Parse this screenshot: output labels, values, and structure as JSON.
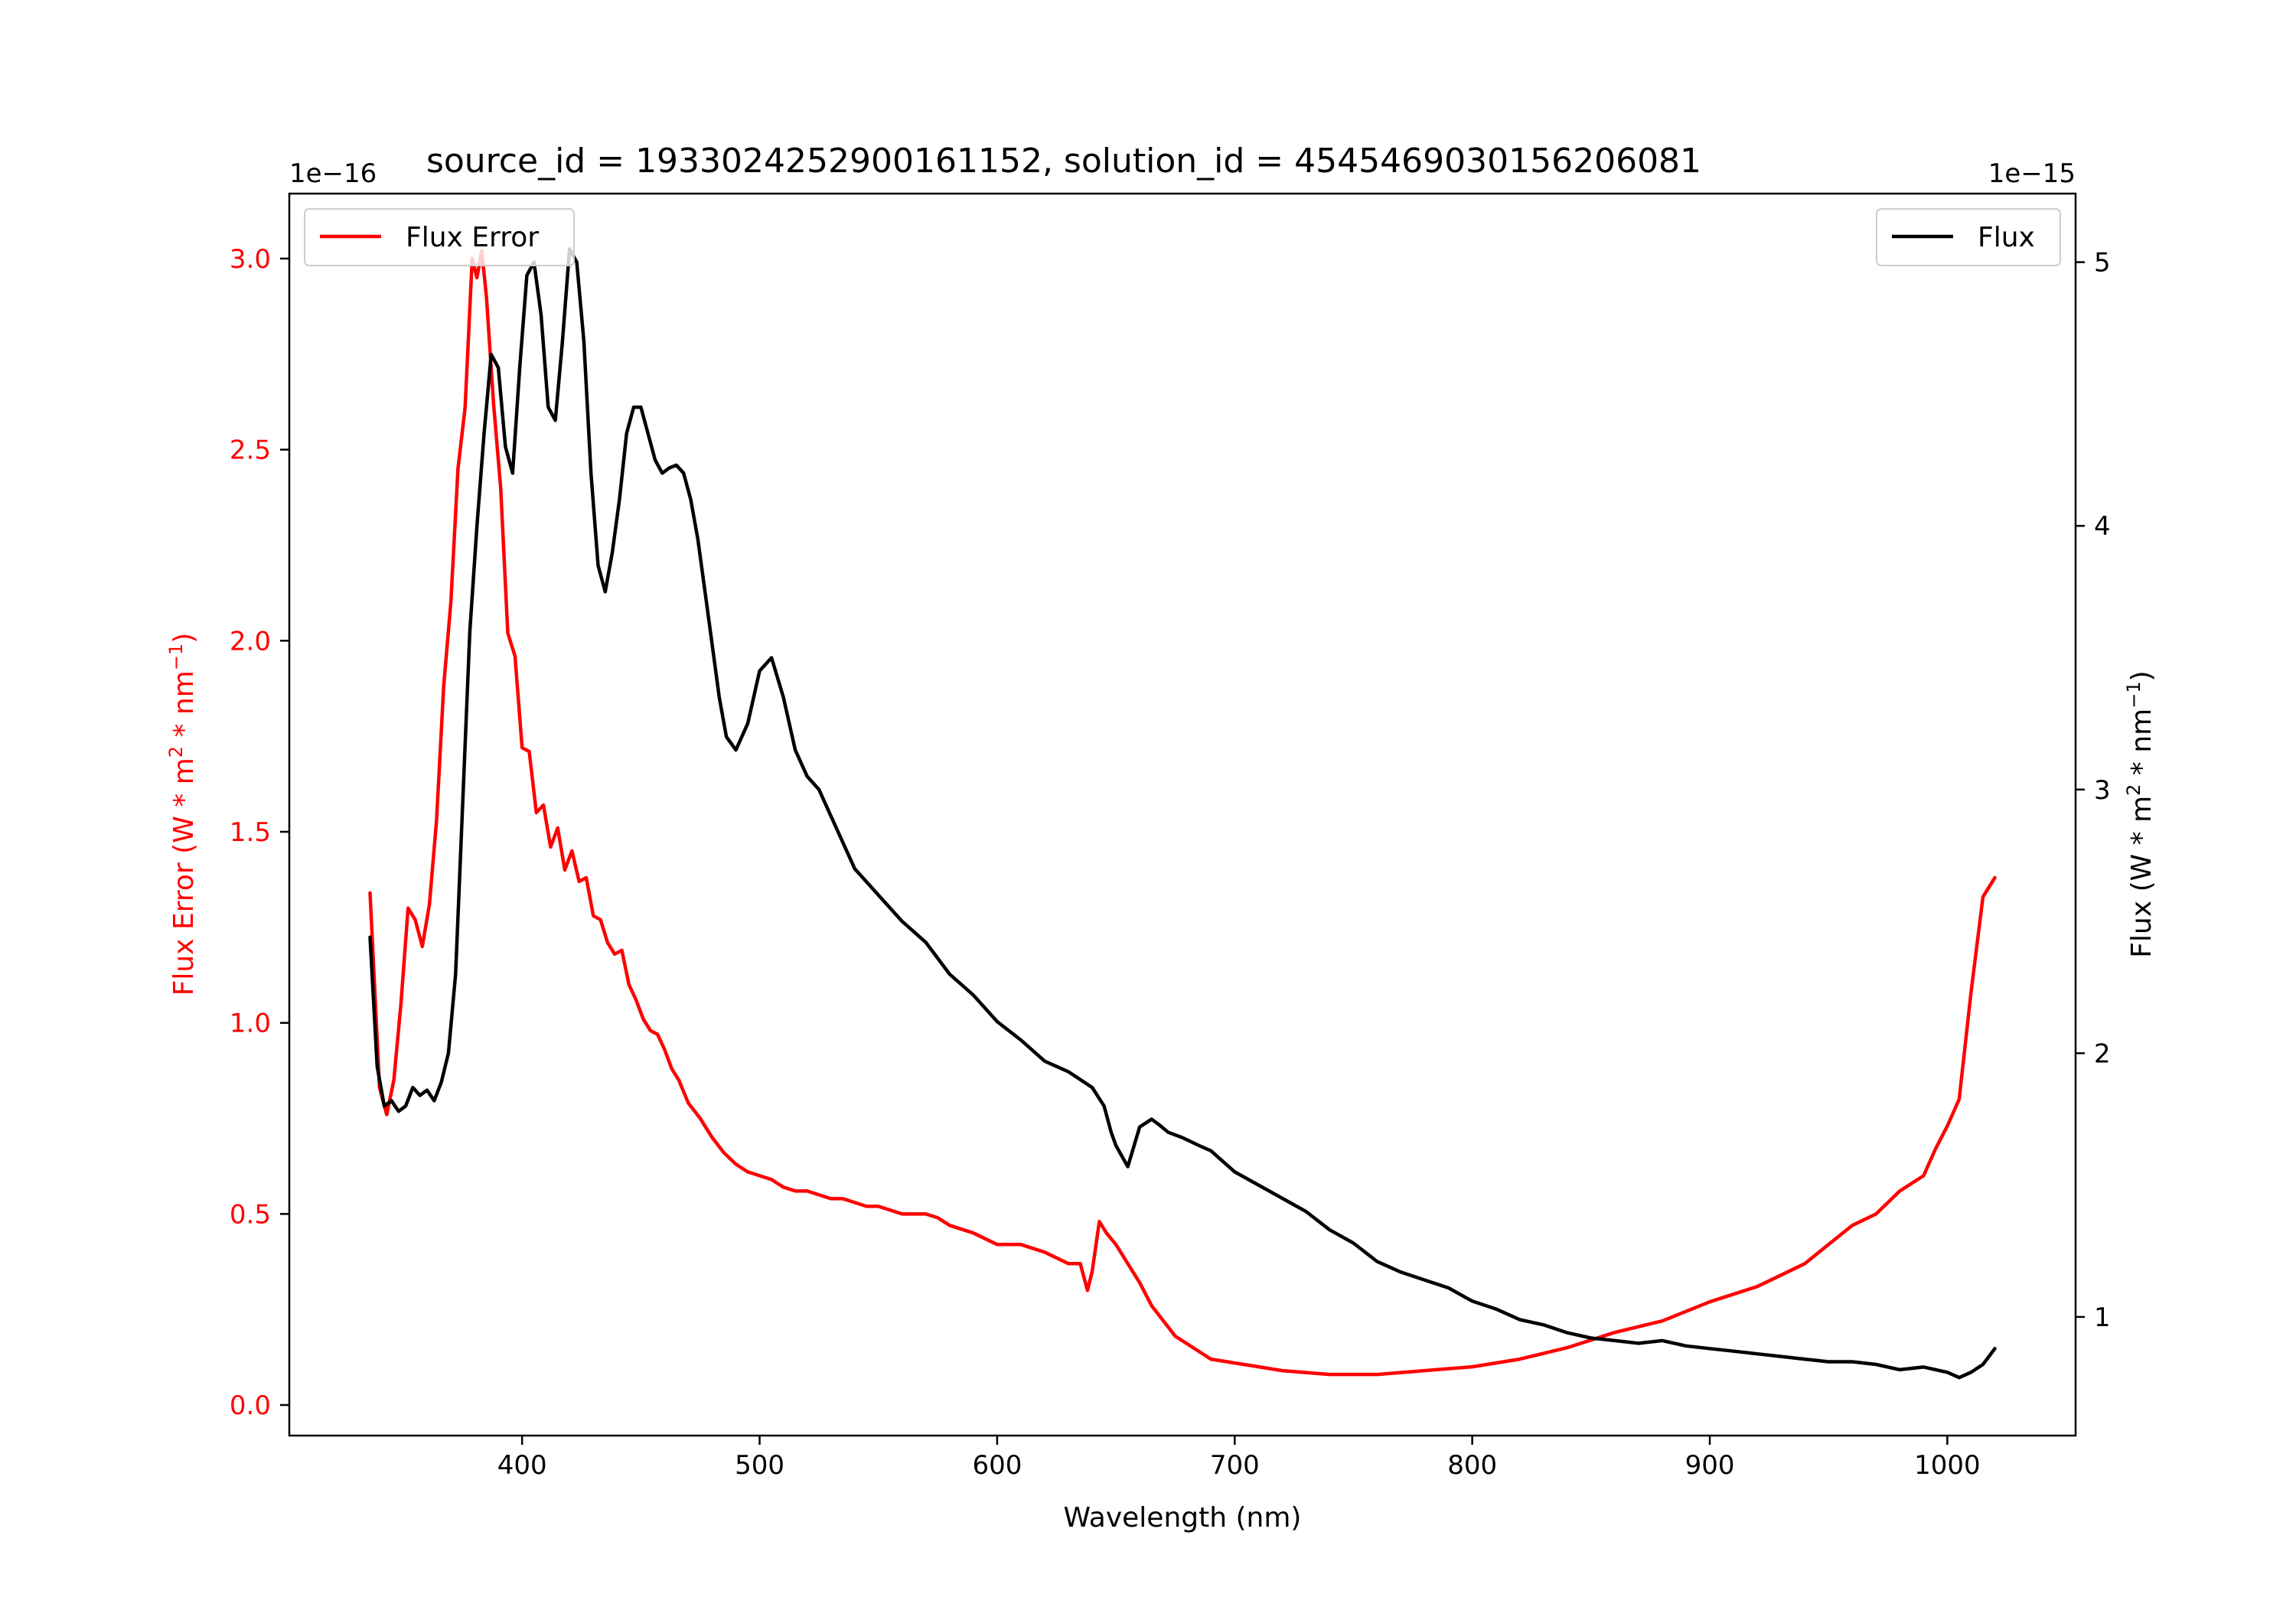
{
  "chart_data": {
    "type": "line",
    "title": "source_id = 1933024252900161152, solution_id = 4545469030156206081",
    "xlabel": "Wavelength (nm)",
    "xlim": [
      302,
      1054
    ],
    "x_ticks": [
      "400",
      "500",
      "600",
      "700",
      "800",
      "900",
      "1000"
    ],
    "left_axis": {
      "label_text": "Flux Error (W * m",
      "label_sup1": "2",
      "label_mid": " * nm",
      "label_sup2": "−1",
      "label_end": ")",
      "offset_text": "1e−16",
      "ylim": [
        -0.08,
        3.17
      ],
      "ticks": [
        "0.0",
        "0.5",
        "1.0",
        "1.5",
        "2.0",
        "2.5",
        "3.0"
      ],
      "color": "#ff0000"
    },
    "right_axis": {
      "label_text": "Flux (W * m",
      "label_sup1": "2",
      "label_mid": " * nm",
      "label_sup2": "−1",
      "label_end": ")",
      "offset_text": "1e−15",
      "ylim": [
        0.55,
        5.26
      ],
      "ticks": [
        "1",
        "2",
        "3",
        "4",
        "5"
      ],
      "color": "#000000"
    },
    "legend": {
      "left": {
        "name": "Flux Error",
        "placement": "upper-left"
      },
      "right": {
        "name": "Flux",
        "placement": "upper-right"
      }
    },
    "series": [
      {
        "name": "Flux Error",
        "axis": "left",
        "color": "#ff0000",
        "x": [
          336,
          340,
          343,
          346,
          349,
          352,
          355,
          358,
          361,
          364,
          367,
          370,
          373,
          376,
          379,
          381,
          383,
          385,
          388,
          391,
          394,
          397,
          400,
          403,
          406,
          409,
          412,
          415,
          418,
          421,
          424,
          427,
          430,
          433,
          436,
          439,
          442,
          445,
          448,
          451,
          454,
          457,
          460,
          463,
          466,
          470,
          475,
          480,
          485,
          490,
          495,
          500,
          505,
          510,
          515,
          520,
          525,
          530,
          535,
          540,
          545,
          550,
          555,
          560,
          565,
          570,
          575,
          580,
          590,
          600,
          610,
          620,
          630,
          635,
          638,
          640,
          643,
          646,
          650,
          655,
          660,
          665,
          670,
          675,
          680,
          690,
          700,
          720,
          740,
          760,
          780,
          800,
          820,
          840,
          860,
          880,
          900,
          910,
          920,
          930,
          940,
          950,
          960,
          970,
          980,
          990,
          995,
          1000,
          1005,
          1010,
          1015,
          1020
        ],
        "values": [
          1.34,
          0.83,
          0.76,
          0.85,
          1.05,
          1.3,
          1.27,
          1.2,
          1.31,
          1.53,
          1.88,
          2.1,
          2.45,
          2.61,
          3.0,
          2.95,
          3.02,
          2.9,
          2.62,
          2.4,
          2.02,
          1.96,
          1.72,
          1.71,
          1.55,
          1.57,
          1.46,
          1.51,
          1.4,
          1.45,
          1.37,
          1.38,
          1.28,
          1.27,
          1.21,
          1.18,
          1.19,
          1.1,
          1.06,
          1.01,
          0.98,
          0.97,
          0.93,
          0.88,
          0.85,
          0.79,
          0.75,
          0.7,
          0.66,
          0.63,
          0.61,
          0.6,
          0.59,
          0.57,
          0.56,
          0.56,
          0.55,
          0.54,
          0.54,
          0.53,
          0.52,
          0.52,
          0.51,
          0.5,
          0.5,
          0.5,
          0.49,
          0.47,
          0.45,
          0.42,
          0.42,
          0.4,
          0.37,
          0.37,
          0.3,
          0.35,
          0.48,
          0.45,
          0.42,
          0.37,
          0.32,
          0.26,
          0.22,
          0.18,
          0.16,
          0.12,
          0.11,
          0.09,
          0.08,
          0.08,
          0.09,
          0.1,
          0.12,
          0.15,
          0.19,
          0.22,
          0.27,
          0.29,
          0.31,
          0.34,
          0.37,
          0.42,
          0.47,
          0.5,
          0.56,
          0.6,
          0.67,
          0.73,
          0.8,
          1.08,
          1.33,
          1.38
        ]
      },
      {
        "name": "Flux",
        "axis": "right",
        "color": "#000000",
        "x": [
          336,
          339,
          342,
          345,
          348,
          351,
          354,
          357,
          360,
          363,
          366,
          369,
          372,
          375,
          378,
          381,
          384,
          387,
          390,
          393,
          396,
          399,
          402,
          405,
          408,
          411,
          414,
          417,
          420,
          423,
          426,
          429,
          432,
          435,
          438,
          441,
          444,
          447,
          450,
          453,
          456,
          459,
          462,
          465,
          468,
          471,
          474,
          477,
          480,
          483,
          486,
          490,
          495,
          500,
          505,
          510,
          515,
          520,
          525,
          530,
          535,
          540,
          545,
          550,
          560,
          570,
          580,
          590,
          600,
          610,
          620,
          630,
          640,
          645,
          648,
          650,
          655,
          660,
          665,
          668,
          672,
          678,
          685,
          690,
          700,
          710,
          720,
          730,
          740,
          750,
          760,
          770,
          780,
          790,
          800,
          810,
          820,
          830,
          840,
          850,
          860,
          870,
          880,
          890,
          900,
          910,
          920,
          930,
          940,
          950,
          960,
          970,
          980,
          990,
          1000,
          1005,
          1010,
          1015,
          1020
        ],
        "values": [
          2.44,
          1.95,
          1.8,
          1.82,
          1.78,
          1.8,
          1.87,
          1.84,
          1.86,
          1.82,
          1.89,
          2.0,
          2.3,
          2.95,
          3.6,
          4.0,
          4.35,
          4.65,
          4.6,
          4.3,
          4.2,
          4.6,
          4.95,
          5.0,
          4.8,
          4.45,
          4.4,
          4.7,
          5.05,
          5.0,
          4.7,
          4.2,
          3.85,
          3.75,
          3.9,
          4.1,
          4.35,
          4.45,
          4.45,
          4.35,
          4.25,
          4.2,
          4.22,
          4.23,
          4.2,
          4.1,
          3.95,
          3.75,
          3.55,
          3.35,
          3.2,
          3.15,
          3.25,
          3.45,
          3.5,
          3.35,
          3.15,
          3.05,
          3.0,
          2.9,
          2.8,
          2.7,
          2.65,
          2.6,
          2.5,
          2.42,
          2.3,
          2.22,
          2.12,
          2.05,
          1.97,
          1.93,
          1.87,
          1.8,
          1.7,
          1.65,
          1.57,
          1.72,
          1.75,
          1.73,
          1.7,
          1.68,
          1.65,
          1.63,
          1.55,
          1.5,
          1.45,
          1.4,
          1.33,
          1.28,
          1.21,
          1.17,
          1.14,
          1.11,
          1.06,
          1.03,
          0.99,
          0.97,
          0.94,
          0.92,
          0.91,
          0.9,
          0.91,
          0.89,
          0.88,
          0.87,
          0.86,
          0.85,
          0.84,
          0.83,
          0.83,
          0.82,
          0.8,
          0.81,
          0.79,
          0.77,
          0.79,
          0.82,
          0.88
        ]
      }
    ]
  }
}
